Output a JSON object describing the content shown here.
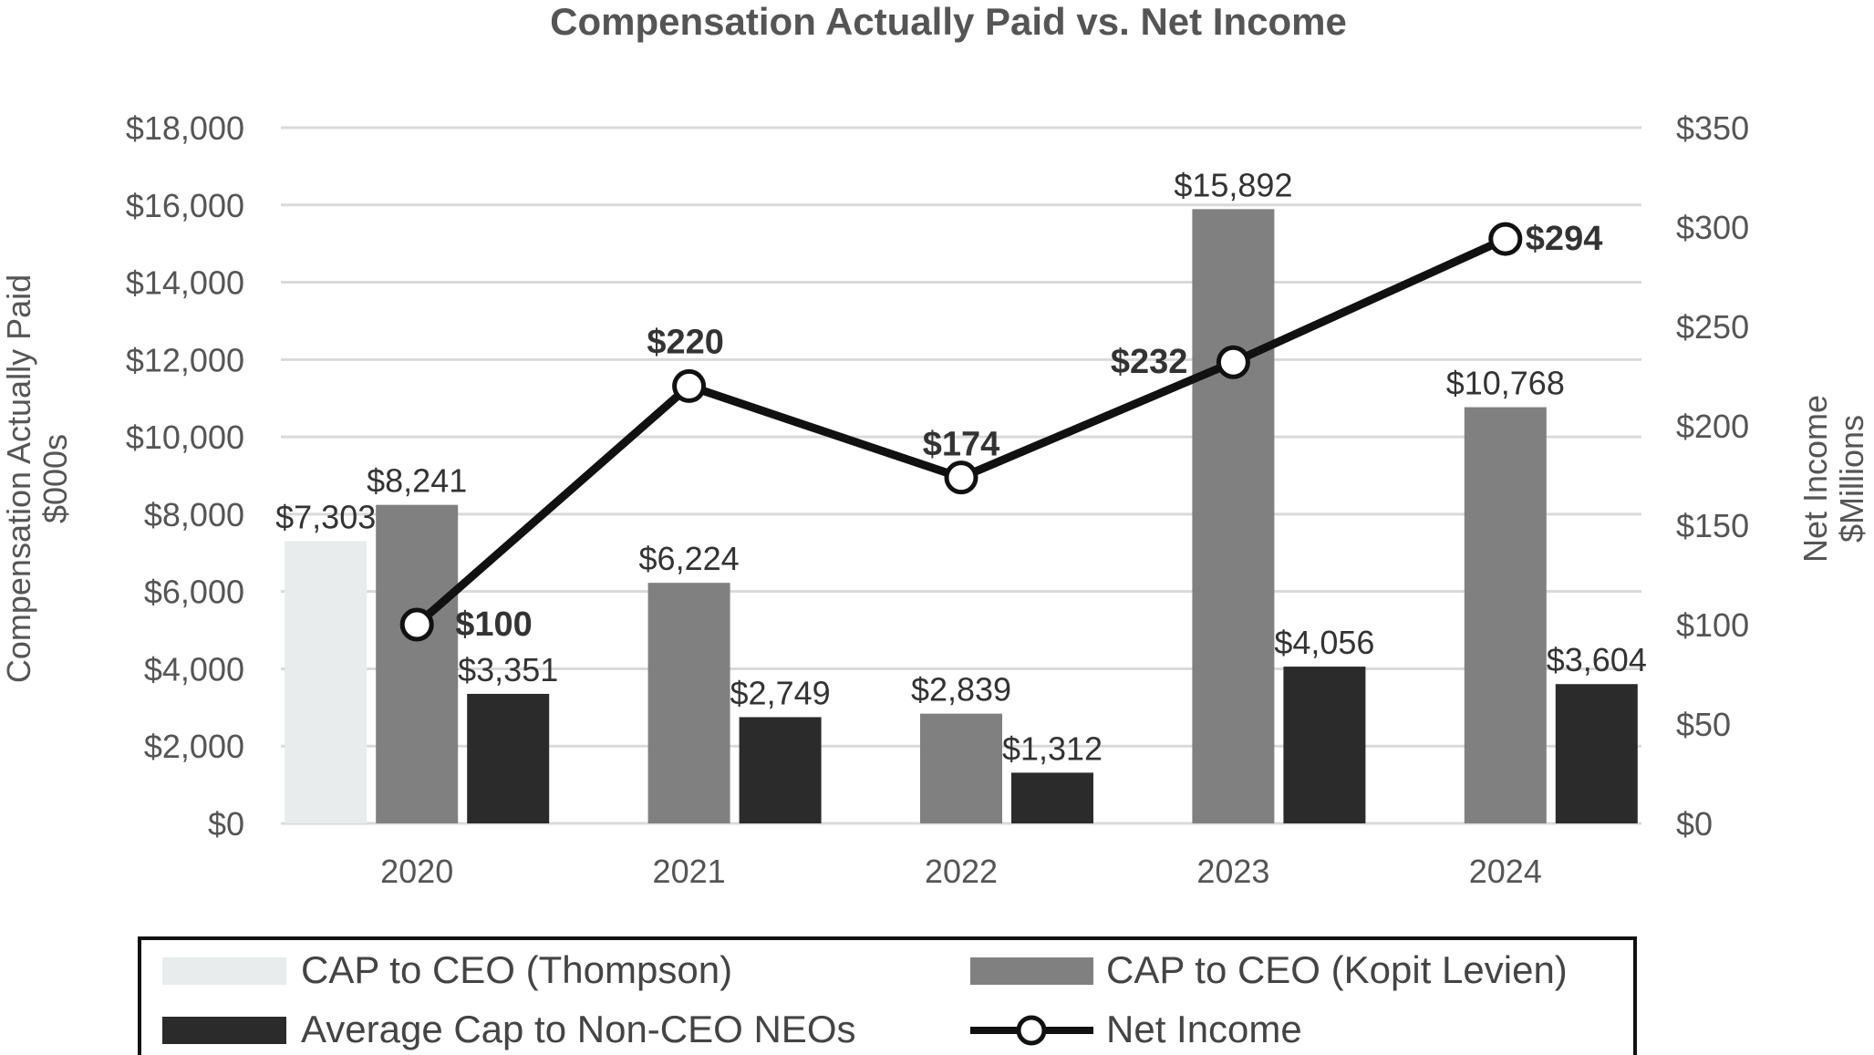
{
  "chart_data": {
    "type": "bar",
    "title": "Compensation Actually Paid vs. Net Income",
    "categories": [
      "2020",
      "2021",
      "2022",
      "2023",
      "2024"
    ],
    "ylabel_left_line1": "Compensation Actually Paid",
    "ylabel_left_line2": "$000s",
    "ylabel_right_line1": "Net Income",
    "ylabel_right_line2": "$Millions",
    "ylim_left": [
      0,
      18000
    ],
    "yticks_left": [
      0,
      2000,
      4000,
      6000,
      8000,
      10000,
      12000,
      14000,
      16000,
      18000
    ],
    "ytick_labels_left": [
      "$0",
      "$2,000",
      "$4,000",
      "$6,000",
      "$8,000",
      "$10,000",
      "$12,000",
      "$14,000",
      "$16,000",
      "$18,000"
    ],
    "ylim_right": [
      0,
      350
    ],
    "yticks_right": [
      0,
      50,
      100,
      150,
      200,
      250,
      300,
      350
    ],
    "ytick_labels_right": [
      "$0",
      "$50",
      "$100",
      "$150",
      "$200",
      "$250",
      "$300",
      "$350"
    ],
    "grid": true,
    "legend_position": "bottom",
    "series": [
      {
        "name": "CAP to CEO (Thompson)",
        "type": "bar",
        "axis": "left",
        "color": "#e9ecec",
        "values": [
          7303,
          null,
          null,
          null,
          null
        ],
        "labels": [
          "$7,303",
          null,
          null,
          null,
          null
        ]
      },
      {
        "name": "CAP to CEO (Kopit Levien)",
        "type": "bar",
        "axis": "left",
        "color": "#808080",
        "values": [
          8241,
          6224,
          2839,
          15892,
          10768
        ],
        "labels": [
          "$8,241",
          "$6,224",
          "$2,839",
          "$15,892",
          "$10,768"
        ]
      },
      {
        "name": "Average Cap to Non-CEO NEOs",
        "type": "bar",
        "axis": "left",
        "color": "#2b2b2b",
        "values": [
          3351,
          2749,
          1312,
          4056,
          3604
        ],
        "labels": [
          "$3,351",
          "$2,749",
          "$1,312",
          "$4,056",
          "$3,604"
        ]
      },
      {
        "name": "Net Income",
        "type": "line",
        "axis": "right",
        "color": "#111111",
        "values": [
          100,
          220,
          174,
          232,
          294
        ],
        "labels": [
          "$100",
          "$220",
          "$174",
          "$232",
          "$294"
        ]
      }
    ]
  }
}
